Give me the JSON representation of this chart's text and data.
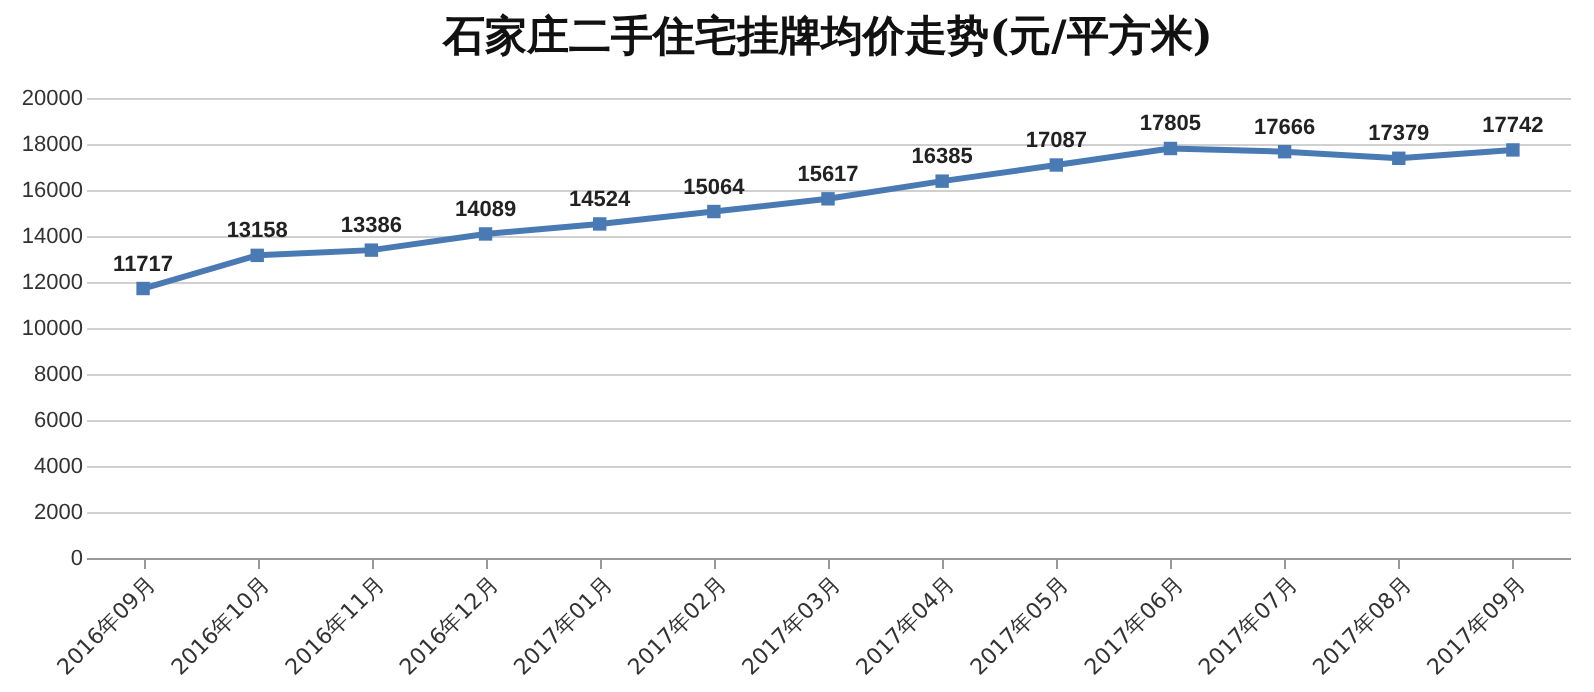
{
  "chart_data": {
    "type": "line",
    "title": "石家庄二手住宅挂牌均价走势(元/平方米)",
    "categories": [
      "2016年09月",
      "2016年10月",
      "2016年11月",
      "2016年12月",
      "2017年01月",
      "2017年02月",
      "2017年03月",
      "2017年04月",
      "2017年05月",
      "2017年06月",
      "2017年07月",
      "2017年08月",
      "2017年09月"
    ],
    "series": [
      {
        "color": "#4a7ab4",
        "values": [
          11717,
          13158,
          13386,
          14089,
          14524,
          15064,
          15617,
          16385,
          17087,
          17805,
          17666,
          17379,
          17742
        ]
      }
    ],
    "ylim": [
      0,
      20000
    ],
    "yticks": [
      0,
      2000,
      4000,
      6000,
      8000,
      10000,
      12000,
      14000,
      16000,
      18000,
      20000
    ],
    "grid": "y",
    "marker": "square",
    "line_style": "solid",
    "data_labels": true
  }
}
